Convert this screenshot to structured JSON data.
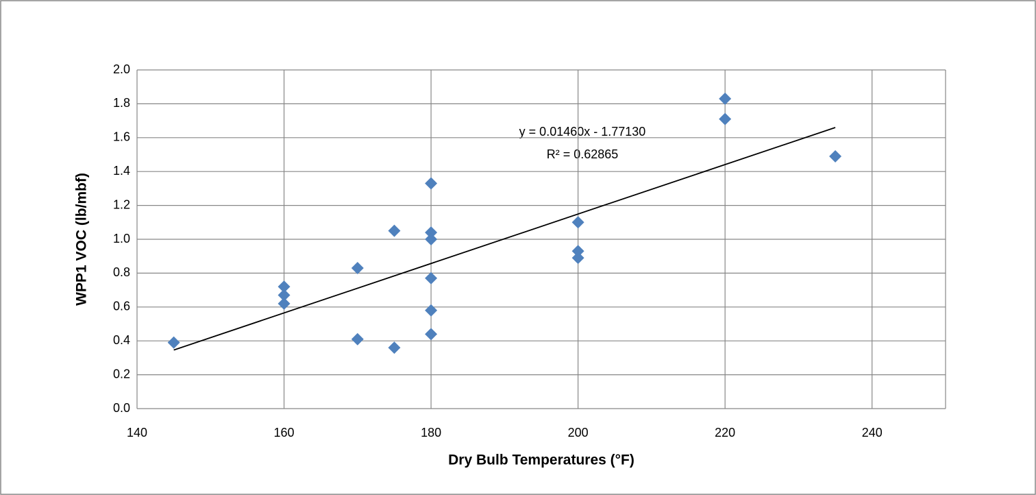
{
  "chart_data": {
    "type": "scatter",
    "x_label": "Dry Bulb Temperatures (°F)",
    "y_label": "WPP1 VOC (lb/mbf)",
    "series": [
      {
        "name": "WPP1 VOC",
        "color": "#4f81bd",
        "x": [
          145,
          160,
          160,
          160,
          170,
          170,
          175,
          175,
          180,
          180,
          180,
          180,
          180,
          180,
          200,
          200,
          200,
          220,
          220,
          235
        ],
        "values": [
          0.39,
          0.72,
          0.67,
          0.62,
          0.83,
          0.41,
          1.05,
          0.36,
          1.33,
          1.04,
          1.0,
          0.77,
          0.58,
          0.44,
          1.1,
          0.93,
          0.89,
          1.83,
          1.71,
          1.49
        ]
      }
    ],
    "trendline": {
      "color": "#000000",
      "x": [
        145,
        235
      ],
      "values": [
        0.346,
        1.66
      ]
    },
    "annotations": [
      "y = 0.01460x - 1.77130",
      "R² = 0.62865"
    ],
    "xlim": [
      140,
      250
    ],
    "xticks": [
      140,
      160,
      180,
      200,
      220,
      240
    ],
    "ylim": [
      0,
      2
    ],
    "yticks": [
      {
        "value": 0,
        "label": "0.0"
      },
      {
        "value": 0.2,
        "label": "0.2"
      },
      {
        "value": 0.4,
        "label": "0.4"
      },
      {
        "value": 0.6,
        "label": "0.6"
      },
      {
        "value": 0.8,
        "label": "0.8"
      },
      {
        "value": 1,
        "label": "1.0"
      },
      {
        "value": 1.2,
        "label": "1.2"
      },
      {
        "value": 1.4,
        "label": "1.4"
      },
      {
        "value": 1.6,
        "label": "1.6"
      },
      {
        "value": 1.8,
        "label": "1.8"
      },
      {
        "value": 2,
        "label": "2.0"
      }
    ],
    "grid": true
  }
}
